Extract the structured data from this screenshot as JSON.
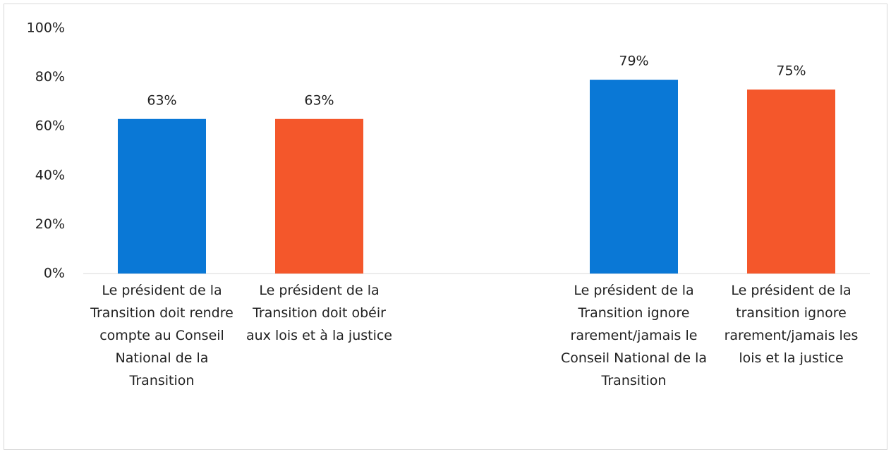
{
  "chart_data": {
    "type": "bar",
    "categories": [
      "Le président de la Transition doit rendre compte au Conseil National de la Transition",
      "Le président de la Transition doit obéir aux lois et à la justice",
      null,
      "Le président de la Transition ignore rarement/jamais le Conseil National de la Transition",
      "Le président de la transition ignore rarement/jamais les lois et la justice"
    ],
    "values": [
      63,
      63,
      null,
      79,
      75
    ],
    "value_labels": [
      "63%",
      "63%",
      null,
      "79%",
      "75%"
    ],
    "colors": [
      "#0a78d6",
      "#f4572b",
      null,
      "#0a78d6",
      "#f4572b"
    ],
    "ylim": [
      0,
      100
    ],
    "yticks": [
      {
        "value": 0,
        "label": "0%"
      },
      {
        "value": 20,
        "label": "20%"
      },
      {
        "value": 40,
        "label": "40%"
      },
      {
        "value": 60,
        "label": "60%"
      },
      {
        "value": 80,
        "label": "80%"
      },
      {
        "value": 100,
        "label": "100%"
      }
    ],
    "grid": false
  }
}
